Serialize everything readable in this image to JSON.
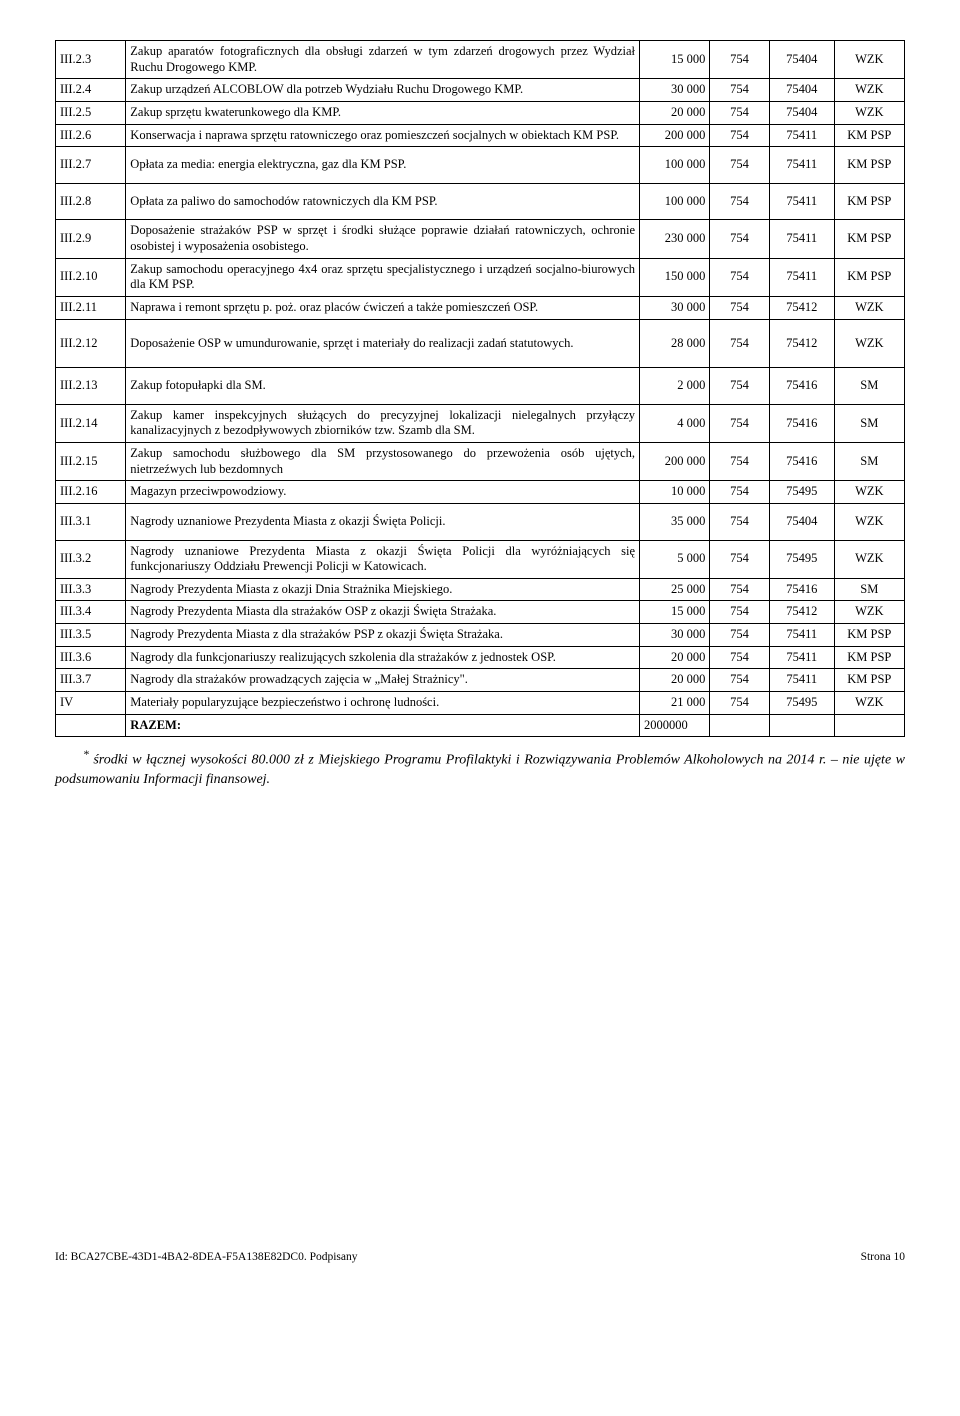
{
  "rows": [
    {
      "id": "III.2.3",
      "desc": "Zakup aparatów fotograficznych dla obsługi zdarzeń w tym zdarzeń drogowych przez Wydział Ruchu Drogowego KMP.",
      "v1": "15 000",
      "v2": "754",
      "v3": "75404",
      "v4": "WZK"
    },
    {
      "id": "III.2.4",
      "desc": "Zakup urządzeń ALCOBLOW dla potrzeb Wydziału Ruchu Drogowego KMP.",
      "v1": "30 000",
      "v2": "754",
      "v3": "75404",
      "v4": "WZK"
    },
    {
      "id": "III.2.5",
      "desc": "Zakup sprzętu kwaterunkowego dla KMP.",
      "v1": "20 000",
      "v2": "754",
      "v3": "75404",
      "v4": "WZK"
    },
    {
      "id": "III.2.6",
      "desc": "Konserwacja i naprawa sprzętu ratowniczego oraz pomieszczeń socjalnych w obiektach KM PSP.",
      "v1": "200 000",
      "v2": "754",
      "v3": "75411",
      "v4": "KM PSP"
    },
    {
      "id": "III.2.7",
      "desc": "Opłata za media: energia elektryczna, gaz dla KM PSP.",
      "v1": "100 000",
      "v2": "754",
      "v3": "75411",
      "v4": "KM PSP"
    },
    {
      "id": "III.2.8",
      "desc": "Opłata za paliwo do samochodów ratowniczych dla KM PSP.",
      "v1": "100 000",
      "v2": "754",
      "v3": "75411",
      "v4": "KM PSP"
    },
    {
      "id": "III.2.9",
      "desc": "Doposażenie strażaków PSP w sprzęt i środki służące poprawie działań ratowniczych, ochronie osobistej i wyposażenia osobistego.",
      "v1": "230 000",
      "v2": "754",
      "v3": "75411",
      "v4": "KM PSP"
    },
    {
      "id": "III.2.10",
      "desc": "Zakup samochodu operacyjnego 4x4 oraz sprzętu specjalistycznego i urządzeń socjalno-biurowych dla KM PSP.",
      "v1": "150 000",
      "v2": "754",
      "v3": "75411",
      "v4": "KM PSP"
    },
    {
      "id": "III.2.11",
      "desc": "Naprawa i remont sprzętu p. poż. oraz placów ćwiczeń a także pomieszczeń OSP.",
      "v1": "30 000",
      "v2": "754",
      "v3": "75412",
      "v4": "WZK"
    },
    {
      "id": "III.2.12",
      "desc": "Doposażenie OSP w umundurowanie, sprzęt i materiały do realizacji zadań statutowych.",
      "v1": "28 000",
      "v2": "754",
      "v3": "75412",
      "v4": "WZK"
    },
    {
      "id": "III.2.13",
      "desc": "Zakup fotopułapki dla SM.",
      "v1": "2 000",
      "v2": "754",
      "v3": "75416",
      "v4": "SM"
    },
    {
      "id": "III.2.14",
      "desc": "Zakup kamer inspekcyjnych służących do precyzyjnej lokalizacji nielegalnych przyłączy kanalizacyjnych z bezodpływowych zbiorników tzw. Szamb dla SM.",
      "v1": "4 000",
      "v2": "754",
      "v3": "75416",
      "v4": "SM"
    },
    {
      "id": "III.2.15",
      "desc": "Zakup samochodu służbowego dla SM przystosowanego do przewożenia osób ujętych, nietrzeźwych lub bezdomnych",
      "v1": "200 000",
      "v2": "754",
      "v3": "75416",
      "v4": "SM"
    },
    {
      "id": "III.2.16",
      "desc": "Magazyn przeciwpowodziowy.",
      "v1": "10 000",
      "v2": "754",
      "v3": "75495",
      "v4": "WZK"
    },
    {
      "id": "III.3.1",
      "desc": "Nagrody uznaniowe Prezydenta Miasta z okazji Święta Policji.",
      "v1": "35 000",
      "v2": "754",
      "v3": "75404",
      "v4": "WZK"
    },
    {
      "id": "III.3.2",
      "desc": "Nagrody uznaniowe Prezydenta Miasta z okazji Święta Policji dla wyróżniających się funkcjonariuszy Oddziału Prewencji Policji w Katowicach.",
      "v1": "5 000",
      "v2": "754",
      "v3": "75495",
      "v4": "WZK"
    },
    {
      "id": "III.3.3",
      "desc": "Nagrody Prezydenta Miasta z okazji Dnia Strażnika Miejskiego.",
      "v1": "25 000",
      "v2": "754",
      "v3": "75416",
      "v4": "SM"
    },
    {
      "id": "III.3.4",
      "desc": "Nagrody Prezydenta Miasta dla strażaków OSP z okazji Święta Strażaka.",
      "v1": "15 000",
      "v2": "754",
      "v3": "75412",
      "v4": "WZK"
    },
    {
      "id": "III.3.5",
      "desc": "Nagrody Prezydenta Miasta z dla strażaków PSP z okazji Święta Strażaka.",
      "v1": "30 000",
      "v2": "754",
      "v3": "75411",
      "v4": "KM PSP"
    },
    {
      "id": "III.3.6",
      "desc": "Nagrody dla funkcjonariuszy realizujących szkolenia dla strażaków z jednostek OSP.",
      "v1": "20 000",
      "v2": "754",
      "v3": "75411",
      "v4": "KM PSP"
    },
    {
      "id": "III.3.7",
      "desc": "Nagrody dla strażaków prowadzących zajęcia w „Małej Strażnicy\".",
      "v1": "20 000",
      "v2": "754",
      "v3": "75411",
      "v4": "KM PSP"
    },
    {
      "id": "IV",
      "desc": "Materiały popularyzujące bezpieczeństwo i ochronę ludności.",
      "v1": "21 000",
      "v2": "754",
      "v3": "75495",
      "v4": "WZK"
    }
  ],
  "razem_label": "RAZEM:",
  "razem_total": "2000000",
  "footnote_sup": "*",
  "footnote_text": "środki w łącznej wysokości 80.000 zł z Miejskiego Programu Profilaktyki i Rozwiązywania Problemów Alkoholowych na 2014 r. – nie ujęte w podsumowaniu Informacji finansowej.",
  "footer_left": "Id: BCA27CBE-43D1-4BA2-8DEA-F5A138E82DC0. Podpisany",
  "footer_right": "Strona 10",
  "gap_before": [
    "III.2.7",
    "III.2.8",
    "III.2.12",
    "III.2.13",
    "III.3.1"
  ]
}
